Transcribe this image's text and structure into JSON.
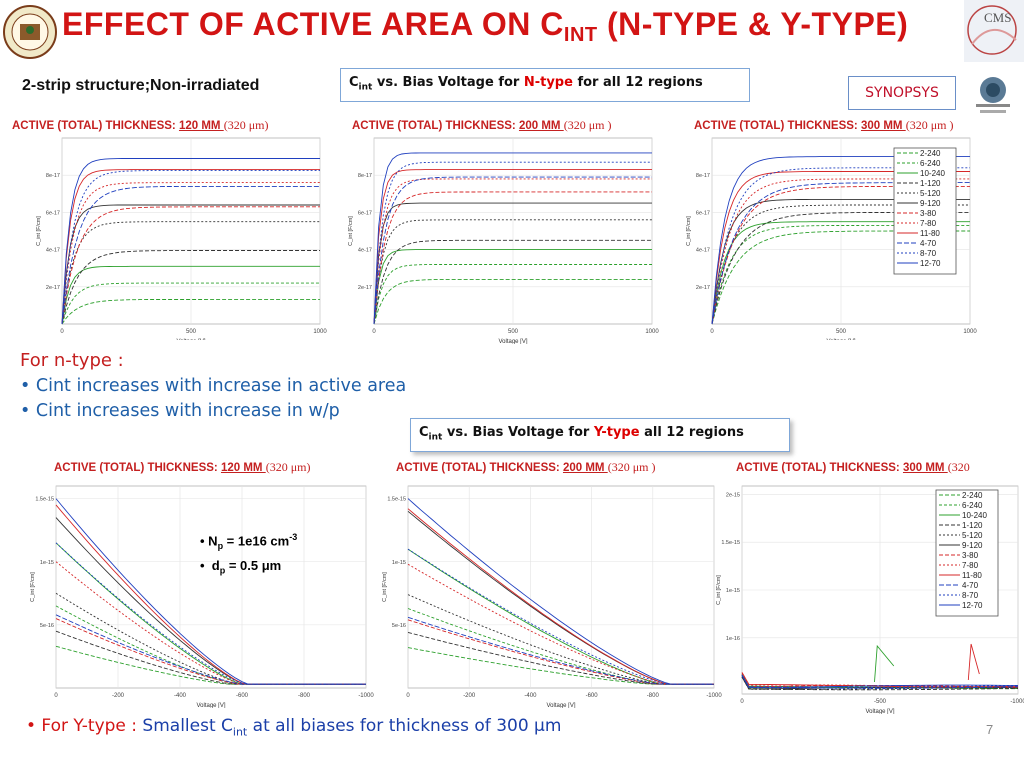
{
  "header": {
    "title_main": "Effect of active area on C",
    "title_sub": "int",
    "title_rest": " (N-type  & Y-type)",
    "logo_right_text": "CMS"
  },
  "subhead": "2-strip structure;Non-irradiated",
  "box1": {
    "c": "C",
    "csub": "int",
    "pre": " vs. Bias Voltage for ",
    "red": "N-type",
    "post": " for all 12 regions"
  },
  "box2": {
    "c": "C",
    "csub": "int",
    "pre": " vs. Bias Voltage for ",
    "red": "Y-type",
    "post": " all 12 regions"
  },
  "synopsys": "SYNOPSYS",
  "plot_titles": [
    {
      "pre": "Active (total) thickness: ",
      "ul": "120 μm ",
      "post": "(320 μm)"
    },
    {
      "pre": "Active (total) thickness: ",
      "ul": "200 μm ",
      "post": "(320 μm )"
    },
    {
      "pre": "Active (total) thickness: ",
      "ul": "300 μm ",
      "post": "(320 μm )"
    },
    {
      "pre": "Active (total) thickness: ",
      "ul": "120 μm ",
      "post": "(320 μm)"
    },
    {
      "pre": "Active (total) thickness: ",
      "ul": "200 μm ",
      "post": "(320 μm )"
    },
    {
      "pre": "Active (total) thickness: ",
      "ul": "300 μm ",
      "post": "(320"
    }
  ],
  "bullets": {
    "l1": "For n-type :",
    "l2": "• Cint increases with increase in active area",
    "l3": "• Cint increases with increase in w/p"
  },
  "params": {
    "np_label": "N",
    "np_sub": "p",
    "np_val": " = 1e16 cm",
    "np_sup": "-3",
    "dp_label": "d",
    "dp_sub": "p",
    "dp_val": " = 0.5 μm"
  },
  "footer": {
    "red": "• For Y-type : ",
    "blue1": "Smallest C",
    "sub": "int",
    "blue2": " at all biases for thickness of 300 μm"
  },
  "page_number": "7",
  "legend_entries": [
    "2-240",
    "6-240",
    "10-240",
    "1-120",
    "5-120",
    "9-120",
    "3-80",
    "7-80",
    "11-80",
    "4-70",
    "8-70",
    "12-70"
  ],
  "legend_colors": [
    "#2ca02c",
    "#2ca02c",
    "#2ca02c",
    "#333333",
    "#333333",
    "#333333",
    "#d62728",
    "#d62728",
    "#d62728",
    "#1f3fbf",
    "#1f3fbf",
    "#1f3fbf"
  ],
  "chart_data": [
    {
      "type": "line",
      "xlabel": "Voltage [V]",
      "ylabel": "C_int [F/cm]",
      "xlim": [
        0,
        1000
      ],
      "ylim": [
        0,
        1e-16
      ],
      "x_ticks": [
        "0",
        "500",
        "1000"
      ],
      "y_ticks": [
        "2e-17",
        "4e-17",
        "6e-17",
        "8e-17"
      ],
      "series_plateaus": [
        1.32e-17,
        2.2e-17,
        3.1e-17,
        3.95e-17,
        5.5e-17,
        6.4e-17,
        6.3e-17,
        7.6e-17,
        8.3e-17,
        7.4e-17,
        8.25e-17,
        8.9e-17
      ]
    },
    {
      "type": "line",
      "xlabel": "Voltage [V]",
      "ylabel": "C_int [F/cm]",
      "xlim": [
        0,
        1000
      ],
      "ylim": [
        0,
        1e-16
      ],
      "x_ticks": [
        "0",
        "500",
        "1000"
      ],
      "y_ticks": [
        "2e-17",
        "4e-17",
        "6e-17",
        "8e-17"
      ],
      "series_plateaus": [
        2.4e-17,
        3.2e-17,
        4e-17,
        4.5e-17,
        5.6e-17,
        6.5e-17,
        7.1e-17,
        7.8e-17,
        8.3e-17,
        7.9e-17,
        8.7e-17,
        9.2e-17
      ]
    },
    {
      "type": "line",
      "xlabel": "Voltage [V]",
      "ylabel": "C_int [F/cm]",
      "xlim": [
        0,
        1000
      ],
      "ylim": [
        0,
        1e-16
      ],
      "x_ticks": [
        "0",
        "500",
        "1000"
      ],
      "y_ticks": [
        "2e-17",
        "4e-17",
        "6e-17",
        "8e-17"
      ],
      "series_plateaus": [
        5e-17,
        5.3e-17,
        5.5e-17,
        6e-17,
        6.4e-17,
        6.7e-17,
        7.4e-17,
        7.8e-17,
        8.2e-17,
        7.6e-17,
        8.4e-17,
        9e-17
      ]
    },
    {
      "type": "line",
      "xlabel": "Voltage [V]",
      "ylabel": "C_int [F/cm]",
      "xlim": [
        0,
        -1000
      ],
      "ylim": [
        0,
        1.6e-15
      ],
      "x_ticks": [
        "0",
        "-200",
        "-400",
        "-600",
        "-800",
        "-1000"
      ],
      "y_ticks": [
        "5e-16",
        "1e-15",
        "1.5e-15"
      ],
      "series_start": [
        3.3e-16,
        6.5e-16,
        1.15e-15,
        4.5e-16,
        7.5e-16,
        1.35e-15,
        5.5e-16,
        1e-15,
        1.45e-15,
        5.8e-16,
        1.15e-15,
        1.5e-15
      ],
      "series_end_v": [
        -560,
        -580,
        -600,
        -570,
        -590,
        -610,
        -590,
        -600,
        -610,
        -600,
        -610,
        -620
      ],
      "series_floor": 3e-17
    },
    {
      "type": "line",
      "xlabel": "Voltage [V]",
      "ylabel": "C_int [F/cm]",
      "xlim": [
        0,
        -1000
      ],
      "ylim": [
        0,
        1.6e-15
      ],
      "x_ticks": [
        "0",
        "-200",
        "-400",
        "-600",
        "-800",
        "-1000"
      ],
      "y_ticks": [
        "5e-16",
        "1e-15",
        "1.5e-15"
      ],
      "series_start": [
        3.2e-16,
        6.3e-16,
        1.1e-15,
        4.4e-16,
        7.4e-16,
        1.4e-15,
        5.4e-16,
        9.8e-16,
        1.42e-15,
        5.6e-16,
        1.1e-15,
        1.5e-15
      ],
      "series_end_v": [
        -800,
        -820,
        -830,
        -810,
        -830,
        -850,
        -820,
        -840,
        -850,
        -830,
        -850,
        -860
      ],
      "series_floor": 3e-17
    },
    {
      "type": "line",
      "xlabel": "Voltage [V]",
      "ylabel": "C_int [F/cm]",
      "xlim": [
        0,
        -1000
      ],
      "ylim": [
        0,
        2.1e-15
      ],
      "x_ticks": [
        "0",
        "-500",
        "-1000"
      ],
      "y_ticks": [
        "1e-16",
        "1e-15",
        "1.5e-15",
        "2e-15"
      ],
      "series_level": [
        6e-17,
        6.5e-17,
        7e-17,
        5e-17,
        5.5e-17,
        6e-17,
        7.5e-17,
        8e-17,
        8.5e-17,
        6.8e-17,
        7.2e-17,
        7.8e-17
      ]
    }
  ]
}
